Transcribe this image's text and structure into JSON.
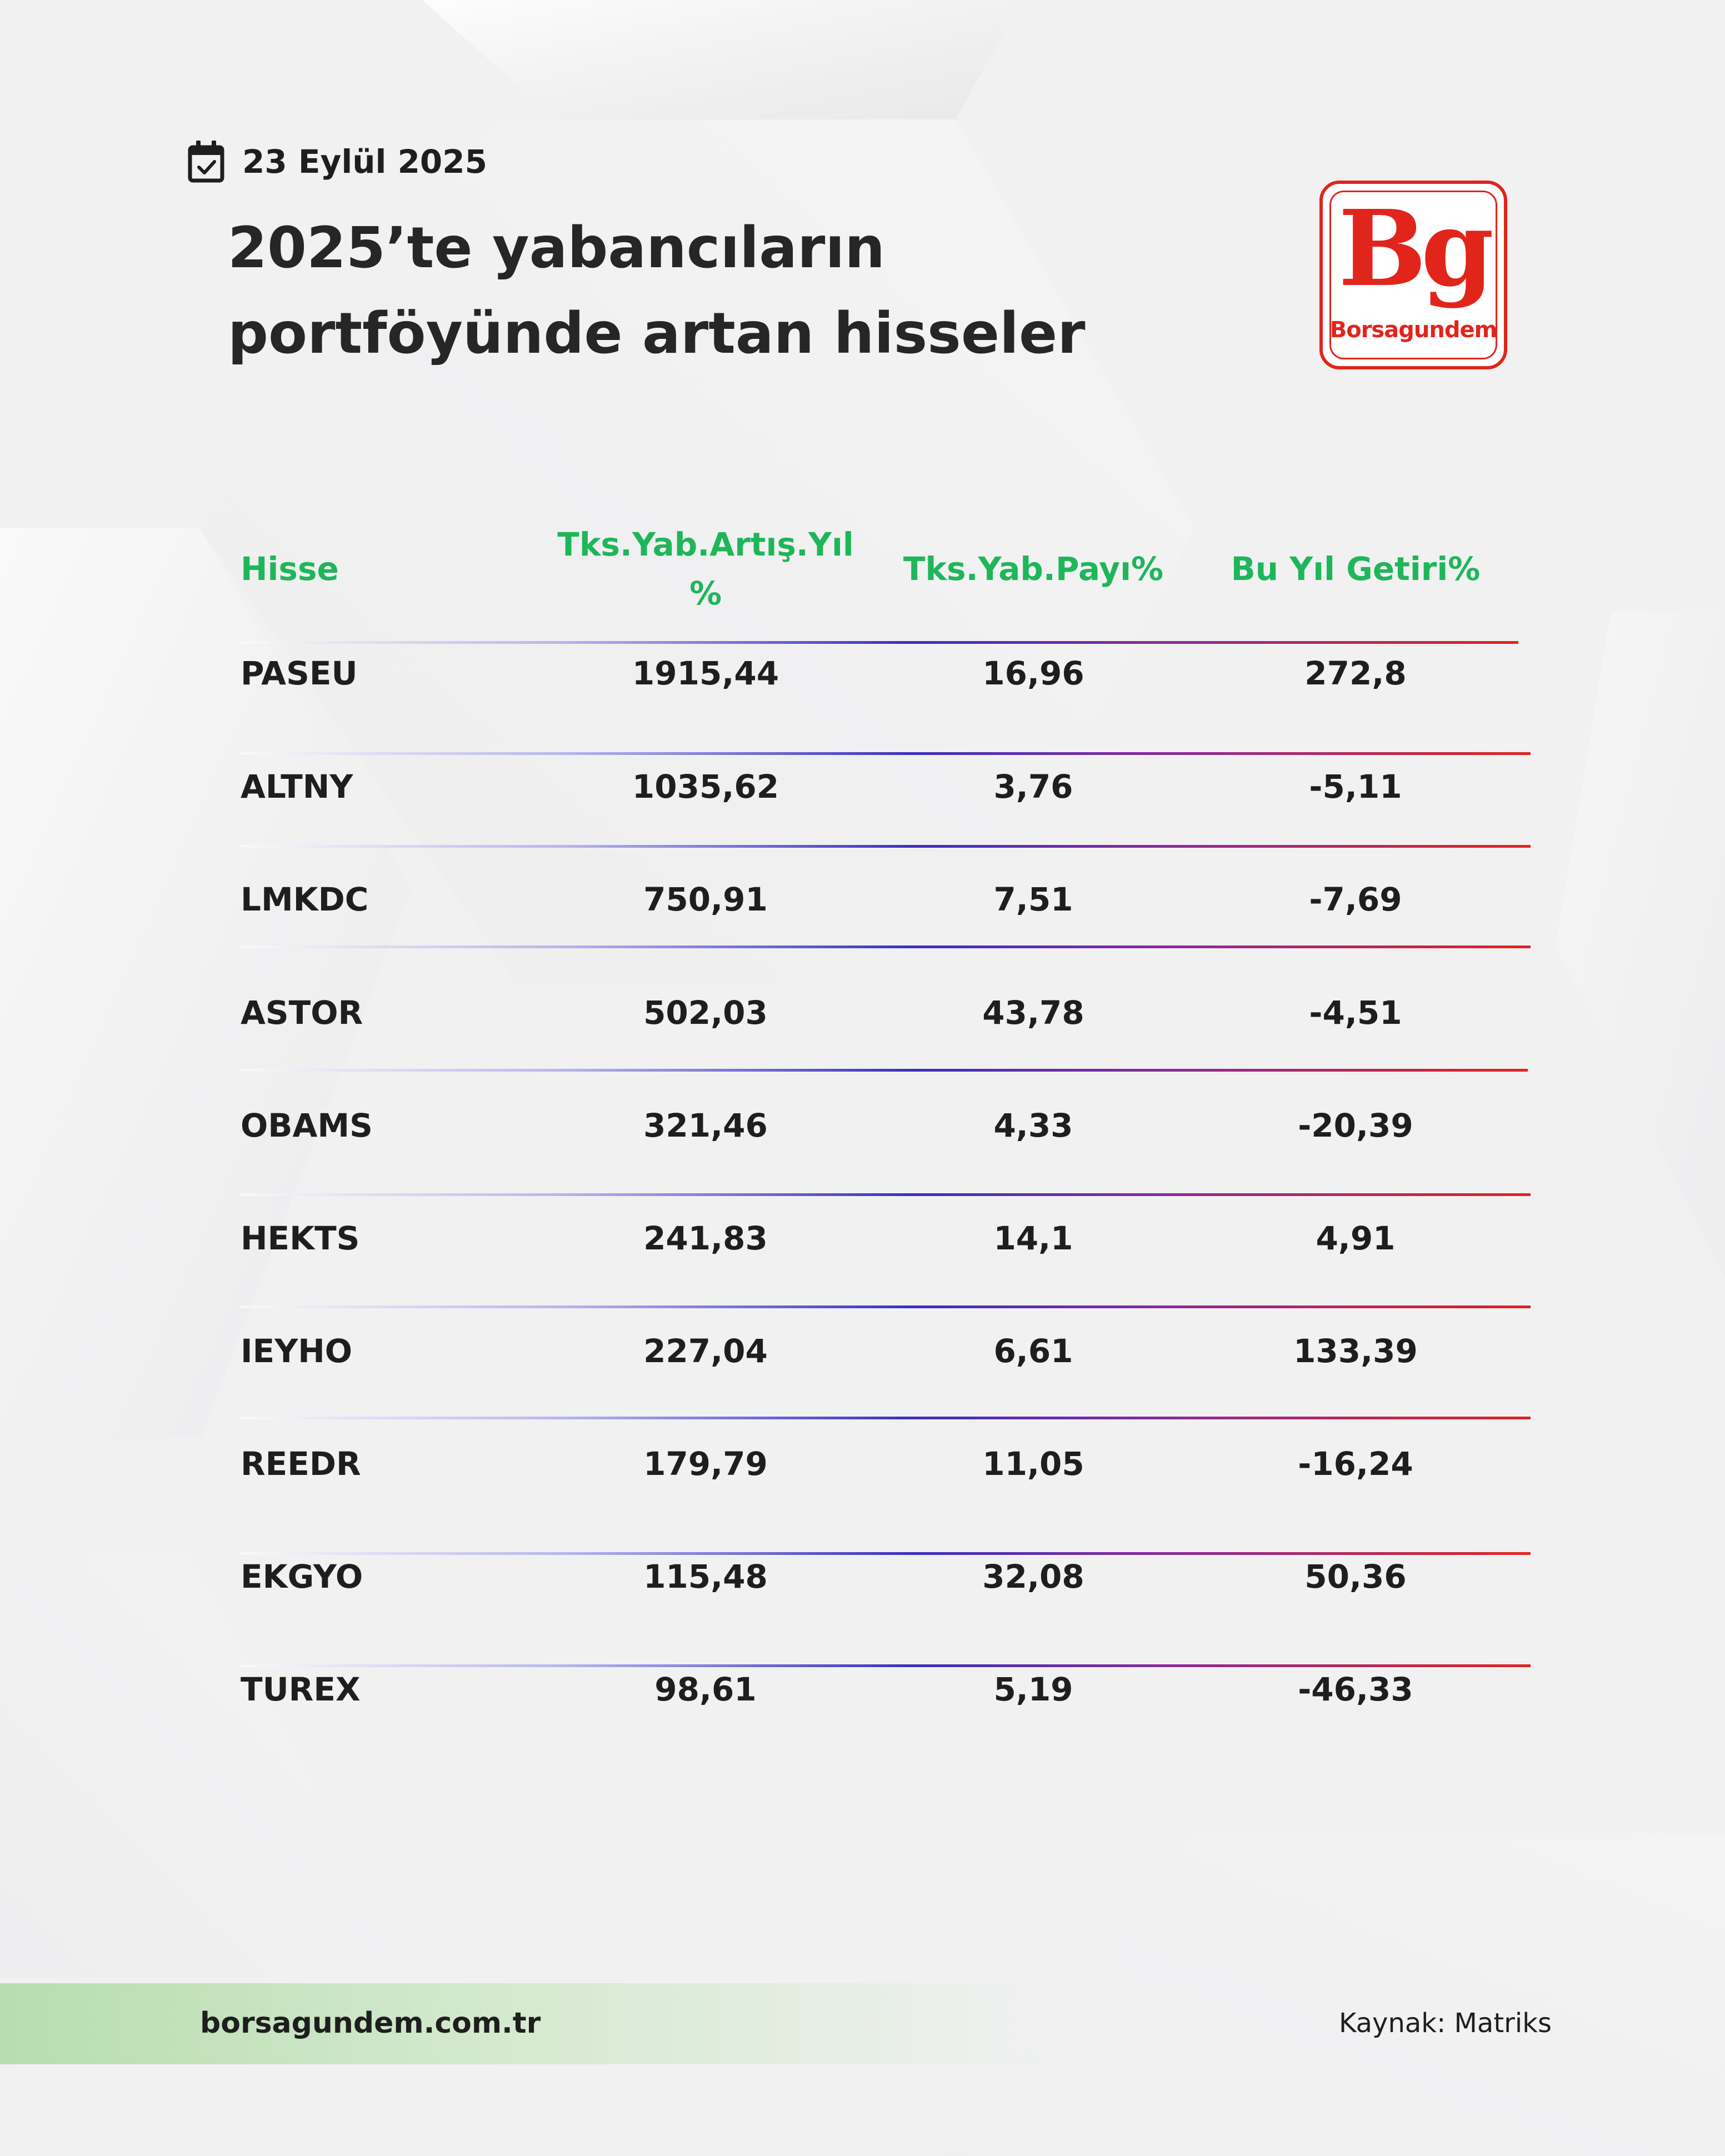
{
  "header": {
    "date": "23 Eylül 2025",
    "title_line1": "2025’te yabancıların",
    "title_line2": "portföyünde artan hisseler"
  },
  "logo": {
    "mark": "Bg",
    "wordmark": "Borsagundem",
    "color": "#e1251b"
  },
  "table": {
    "columns": [
      "Hisse",
      "Tks.Yab.Artış.Yıl %",
      "Tks.Yab.Payı%",
      "Bu Yıl Getiri%"
    ],
    "rows": [
      {
        "ticker": "PASEU",
        "increase": "1915,44",
        "share": "16,96",
        "return": "272,8"
      },
      {
        "ticker": "ALTNY",
        "increase": "1035,62",
        "share": "3,76",
        "return": "-5,11"
      },
      {
        "ticker": "LMKDC",
        "increase": "750,91",
        "share": "7,51",
        "return": "-7,69"
      },
      {
        "ticker": "ASTOR",
        "increase": "502,03",
        "share": "43,78",
        "return": "-4,51"
      },
      {
        "ticker": "OBAMS",
        "increase": "321,46",
        "share": "4,33",
        "return": "-20,39"
      },
      {
        "ticker": "HEKTS",
        "increase": "241,83",
        "share": "14,1",
        "return": "4,91"
      },
      {
        "ticker": "IEYHO",
        "increase": "227,04",
        "share": "6,61",
        "return": "133,39"
      },
      {
        "ticker": "REEDR",
        "increase": "179,79",
        "share": "11,05",
        "return": "-16,24"
      },
      {
        "ticker": "EKGYO",
        "increase": "115,48",
        "share": "32,08",
        "return": "50,36"
      },
      {
        "ticker": "TUREX",
        "increase": "98,61",
        "share": "5,19",
        "return": "-46,33"
      }
    ]
  },
  "footer": {
    "url": "borsagundem.com.tr",
    "source": "Kaynak:  Matriks"
  },
  "colors": {
    "header_green": "#1fb65a",
    "divider_blue": "#3b2fc0",
    "divider_red": "#e2231f",
    "footer_green": "#b8ddb0"
  }
}
